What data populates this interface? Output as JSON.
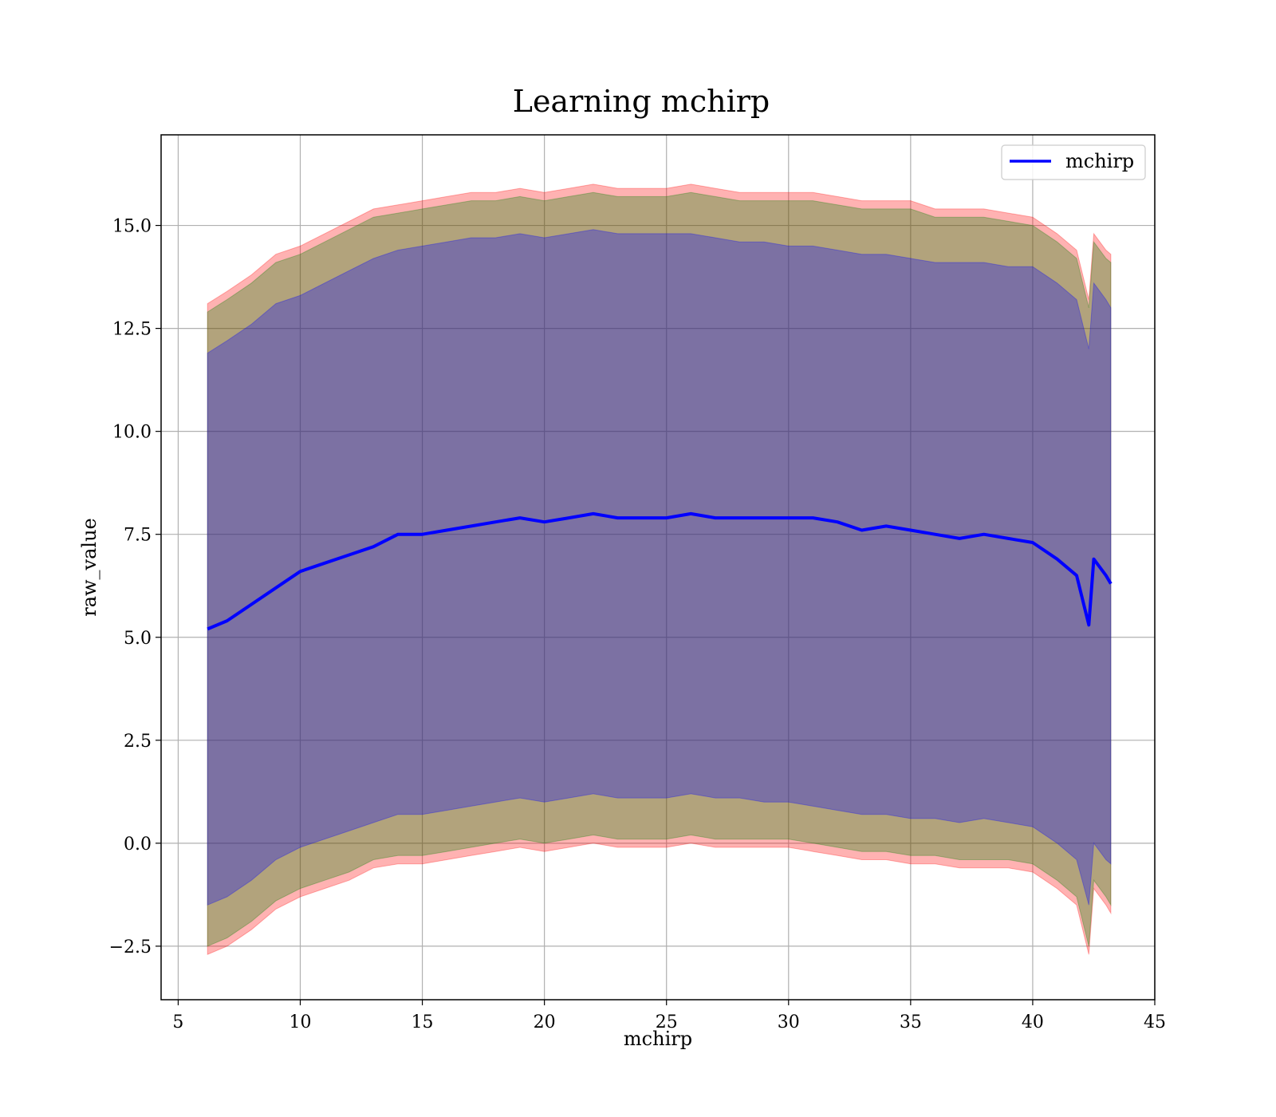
{
  "chart_data": {
    "type": "area",
    "title": "Learning mchirp",
    "xlabel": "mchirp",
    "ylabel": "raw_value",
    "xlim": [
      4.3,
      45
    ],
    "ylim": [
      -3.8,
      17.2
    ],
    "xticks": [
      5,
      10,
      15,
      20,
      25,
      30,
      35,
      40,
      45
    ],
    "yticks": [
      -2.5,
      0.0,
      2.5,
      5.0,
      7.5,
      10.0,
      12.5,
      15.0
    ],
    "ytick_labels": [
      "−2.5",
      "0.0",
      "2.5",
      "5.0",
      "7.5",
      "10.0",
      "12.5",
      "15.0"
    ],
    "grid": true,
    "legend": {
      "position": "top-right",
      "entries": [
        "mchirp"
      ]
    },
    "series": [
      {
        "name": "mchirp",
        "color": "#0000ff",
        "x": [
          6.2,
          7.0,
          8.0,
          9.0,
          10.0,
          11.0,
          12.0,
          13.0,
          14.0,
          15.0,
          16.0,
          17.0,
          18.0,
          19.0,
          20.0,
          21.0,
          22.0,
          23.0,
          24.0,
          25.0,
          26.0,
          27.0,
          28.0,
          29.0,
          30.0,
          31.0,
          32.0,
          33.0,
          34.0,
          35.0,
          36.0,
          37.0,
          38.0,
          39.0,
          40.0,
          41.0,
          41.8,
          42.3,
          42.5,
          43.0,
          43.2
        ],
        "y": [
          5.2,
          5.4,
          5.8,
          6.2,
          6.6,
          6.8,
          7.0,
          7.2,
          7.5,
          7.5,
          7.6,
          7.7,
          7.8,
          7.9,
          7.8,
          7.9,
          8.0,
          7.9,
          7.9,
          7.9,
          8.0,
          7.9,
          7.9,
          7.9,
          7.9,
          7.9,
          7.8,
          7.6,
          7.7,
          7.6,
          7.5,
          7.4,
          7.5,
          7.4,
          7.3,
          6.9,
          6.5,
          5.3,
          6.9,
          6.5,
          6.3
        ]
      }
    ],
    "bands": [
      {
        "color": "#ff0000",
        "opacity": 0.3,
        "upper": [
          13.1,
          13.4,
          13.8,
          14.3,
          14.5,
          14.8,
          15.1,
          15.4,
          15.5,
          15.6,
          15.7,
          15.8,
          15.8,
          15.9,
          15.8,
          15.9,
          16.0,
          15.9,
          15.9,
          15.9,
          16.0,
          15.9,
          15.8,
          15.8,
          15.8,
          15.8,
          15.7,
          15.6,
          15.6,
          15.6,
          15.4,
          15.4,
          15.4,
          15.3,
          15.2,
          14.8,
          14.4,
          13.2,
          14.8,
          14.4,
          14.3
        ],
        "lower": [
          -2.7,
          -2.5,
          -2.1,
          -1.6,
          -1.3,
          -1.1,
          -0.9,
          -0.6,
          -0.5,
          -0.5,
          -0.4,
          -0.3,
          -0.2,
          -0.1,
          -0.2,
          -0.1,
          0.0,
          -0.1,
          -0.1,
          -0.1,
          0.0,
          -0.1,
          -0.1,
          -0.1,
          -0.1,
          -0.2,
          -0.3,
          -0.4,
          -0.4,
          -0.5,
          -0.5,
          -0.6,
          -0.6,
          -0.6,
          -0.7,
          -1.1,
          -1.5,
          -2.7,
          -1.1,
          -1.5,
          -1.7
        ]
      },
      {
        "color": "#008000",
        "opacity": 0.3,
        "upper": [
          12.9,
          13.2,
          13.6,
          14.1,
          14.3,
          14.6,
          14.9,
          15.2,
          15.3,
          15.4,
          15.5,
          15.6,
          15.6,
          15.7,
          15.6,
          15.7,
          15.8,
          15.7,
          15.7,
          15.7,
          15.8,
          15.7,
          15.6,
          15.6,
          15.6,
          15.6,
          15.5,
          15.4,
          15.4,
          15.4,
          15.2,
          15.2,
          15.2,
          15.1,
          15.0,
          14.6,
          14.2,
          13.0,
          14.6,
          14.2,
          14.1
        ],
        "lower": [
          -2.5,
          -2.3,
          -1.9,
          -1.4,
          -1.1,
          -0.9,
          -0.7,
          -0.4,
          -0.3,
          -0.3,
          -0.2,
          -0.1,
          0.0,
          0.1,
          0.0,
          0.1,
          0.2,
          0.1,
          0.1,
          0.1,
          0.2,
          0.1,
          0.1,
          0.1,
          0.1,
          0.0,
          -0.1,
          -0.2,
          -0.2,
          -0.3,
          -0.3,
          -0.4,
          -0.4,
          -0.4,
          -0.5,
          -0.9,
          -1.3,
          -2.5,
          -0.9,
          -1.3,
          -1.5
        ]
      },
      {
        "color": "#0000ff",
        "opacity": 0.3,
        "upper": [
          11.9,
          12.2,
          12.6,
          13.1,
          13.3,
          13.6,
          13.9,
          14.2,
          14.4,
          14.5,
          14.6,
          14.7,
          14.7,
          14.8,
          14.7,
          14.8,
          14.9,
          14.8,
          14.8,
          14.8,
          14.8,
          14.7,
          14.6,
          14.6,
          14.5,
          14.5,
          14.4,
          14.3,
          14.3,
          14.2,
          14.1,
          14.1,
          14.1,
          14.0,
          14.0,
          13.6,
          13.2,
          12.0,
          13.6,
          13.2,
          13.0
        ],
        "lower": [
          -1.5,
          -1.3,
          -0.9,
          -0.4,
          -0.1,
          0.1,
          0.3,
          0.5,
          0.7,
          0.7,
          0.8,
          0.9,
          1.0,
          1.1,
          1.0,
          1.1,
          1.2,
          1.1,
          1.1,
          1.1,
          1.2,
          1.1,
          1.1,
          1.0,
          1.0,
          0.9,
          0.8,
          0.7,
          0.7,
          0.6,
          0.6,
          0.5,
          0.6,
          0.5,
          0.4,
          0.0,
          -0.4,
          -1.5,
          0.0,
          -0.4,
          -0.5
        ]
      }
    ]
  }
}
